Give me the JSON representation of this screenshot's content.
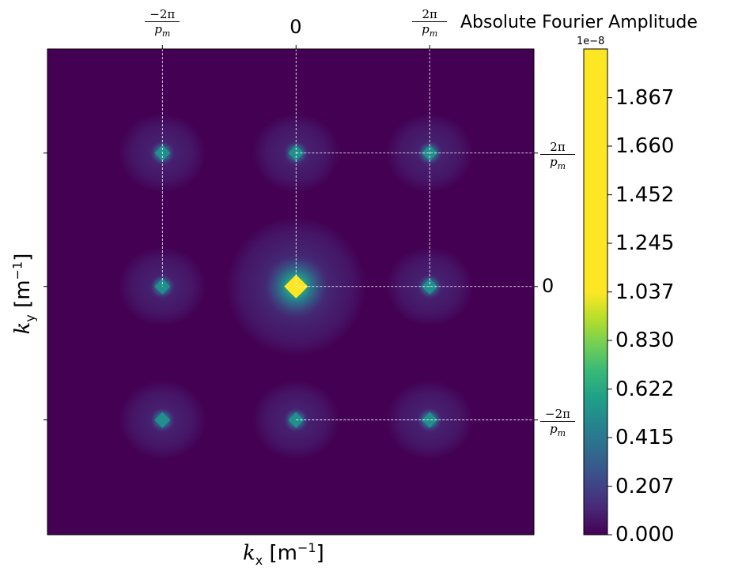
{
  "chart_data": {
    "type": "heatmap",
    "title": "Absolute Fourier Amplitude",
    "xlabel": {
      "symbol": "k",
      "sub": "x",
      "unit": "[m",
      "sup": "−1",
      "close": "]"
    },
    "ylabel": {
      "symbol": "k",
      "sub": "y",
      "unit": "[m",
      "sup": "−1",
      "close": "]"
    },
    "x_ticks": [
      {
        "value": -1,
        "num": "−2π",
        "den": "p",
        "den_sub": "m",
        "is_fraction": true
      },
      {
        "value": 0,
        "label": "0",
        "is_fraction": false
      },
      {
        "value": 1,
        "num": "2π",
        "den": "p",
        "den_sub": "m",
        "is_fraction": true
      }
    ],
    "y_ticks": [
      {
        "value": 1,
        "num": "2π",
        "den": "p",
        "den_sub": "m",
        "is_fraction": true
      },
      {
        "value": 0,
        "label": "0",
        "is_fraction": false
      },
      {
        "value": -1,
        "num": "−2π",
        "den": "p",
        "den_sub": "m",
        "is_fraction": true
      }
    ],
    "xlim": [
      -1.86,
      1.78
    ],
    "ylim": [
      -1.86,
      1.78
    ],
    "grid": "dashed-white-at-ticks",
    "peaks": [
      {
        "kx": 0,
        "ky": 0,
        "amplitude": 2e-08
      },
      {
        "kx": -1,
        "ky": 1,
        "amplitude": 3.2e-09
      },
      {
        "kx": 0,
        "ky": 1,
        "amplitude": 3.2e-09
      },
      {
        "kx": 1,
        "ky": 1,
        "amplitude": 3.2e-09
      },
      {
        "kx": -1,
        "ky": 0,
        "amplitude": 3.2e-09
      },
      {
        "kx": 1,
        "ky": 0,
        "amplitude": 3.2e-09
      },
      {
        "kx": -1,
        "ky": -1,
        "amplitude": 3.2e-09
      },
      {
        "kx": 0,
        "ky": -1,
        "amplitude": 3.2e-09
      },
      {
        "kx": 1,
        "ky": -1,
        "amplitude": 3.2e-09
      }
    ],
    "colorbar": {
      "colormap": "viridis",
      "min": 0.0,
      "max": 2.075,
      "offset_text": "1e−8",
      "ticks": [
        "0.000",
        "0.207",
        "0.415",
        "0.622",
        "0.830",
        "1.037",
        "1.245",
        "1.452",
        "1.660",
        "1.867"
      ],
      "tick_values": [
        0.0,
        0.207,
        0.415,
        0.622,
        0.83,
        1.037,
        1.245,
        1.452,
        1.66,
        1.867
      ]
    },
    "colors": {
      "background": "#440154",
      "halo": "#472d7b",
      "peak_mid": "#21918c",
      "peak_bright": "#fde725",
      "grid": "#ffffff"
    }
  }
}
